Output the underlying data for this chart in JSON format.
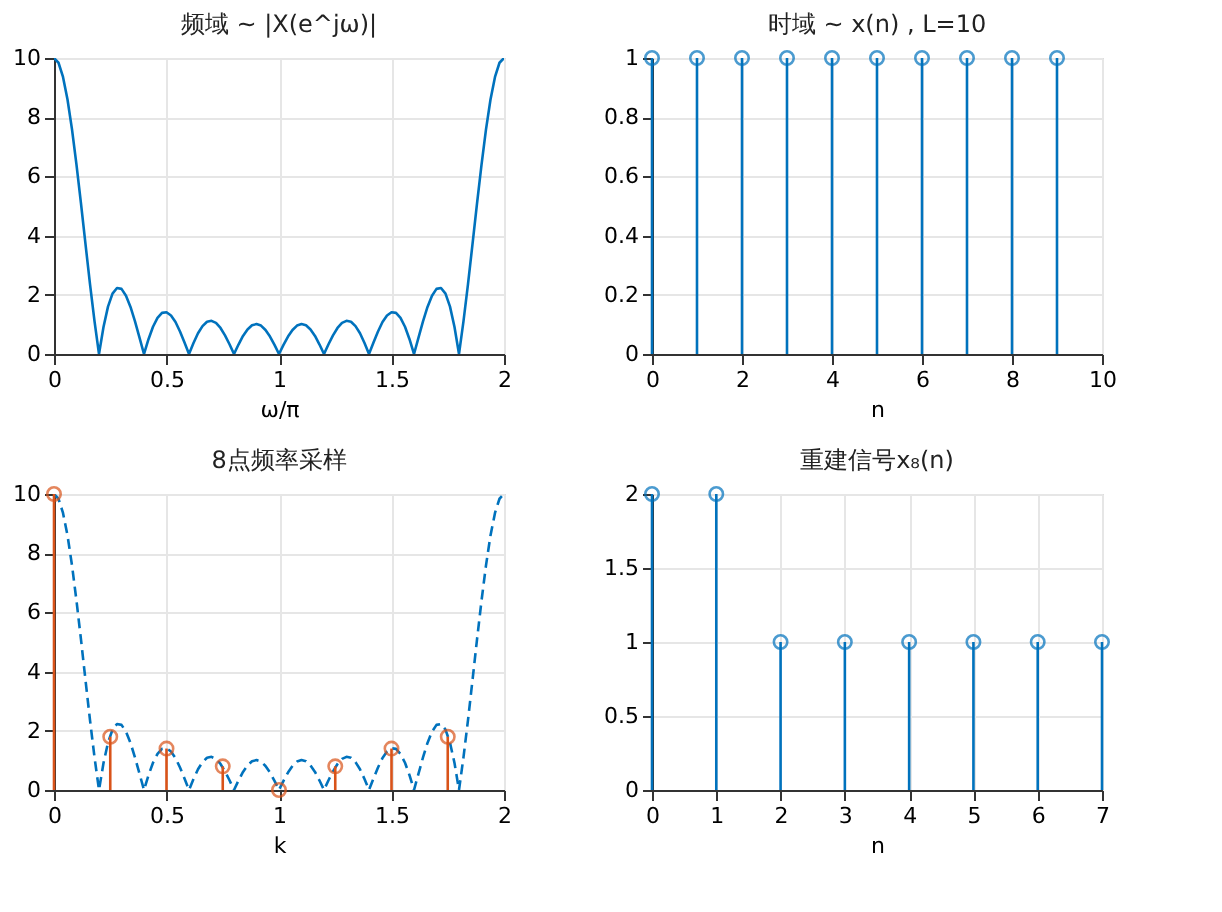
{
  "chart_data": [
    {
      "type": "line",
      "title": "频域 ~ |X(e^jω)|",
      "xlabel": "ω/π",
      "xlim": [
        0,
        2
      ],
      "xticks": [
        0,
        0.5,
        1,
        1.5,
        2
      ],
      "ylim": [
        0,
        10
      ],
      "yticks": [
        0,
        2,
        4,
        6,
        8,
        10
      ],
      "grid": true,
      "x": [
        0,
        0.02,
        0.04,
        0.06,
        0.08,
        0.1,
        0.12,
        0.14,
        0.16,
        0.18,
        0.2,
        0.22,
        0.24,
        0.26,
        0.28,
        0.3,
        0.32,
        0.34,
        0.36,
        0.38,
        0.4,
        0.42,
        0.44,
        0.46,
        0.48,
        0.5,
        0.52,
        0.54,
        0.56,
        0.58,
        0.6,
        0.62,
        0.64,
        0.66,
        0.68,
        0.7,
        0.72,
        0.74,
        0.76,
        0.78,
        0.8,
        0.82,
        0.84,
        0.86,
        0.88,
        0.9,
        0.92,
        0.94,
        0.96,
        0.98,
        1,
        1.02,
        1.04,
        1.06,
        1.08,
        1.1,
        1.12,
        1.14,
        1.16,
        1.18,
        1.2,
        1.22,
        1.24,
        1.26,
        1.28,
        1.3,
        1.32,
        1.34,
        1.36,
        1.38,
        1.4,
        1.42,
        1.44,
        1.46,
        1.48,
        1.5,
        1.52,
        1.54,
        1.56,
        1.58,
        1.6,
        1.62,
        1.64,
        1.66,
        1.68,
        1.7,
        1.72,
        1.74,
        1.76,
        1.78,
        1.8,
        1.82,
        1.84,
        1.86,
        1.88,
        1.9,
        1.92,
        1.94,
        1.96,
        1.98,
        2
      ],
      "series": [
        {
          "color": "#0072bd",
          "values": [
            10,
            9.84,
            9.36,
            8.6,
            7.59,
            6.39,
            5.08,
            3.71,
            2.36,
            1.11,
            0,
            0.91,
            1.6,
            2.04,
            2.23,
            2.2,
            1.97,
            1.59,
            1.1,
            0.55,
            0,
            0.5,
            0.92,
            1.22,
            1.39,
            1.41,
            1.3,
            1.08,
            0.76,
            0.39,
            0,
            0.37,
            0.7,
            0.94,
            1.09,
            1.12,
            1.05,
            0.88,
            0.63,
            0.33,
            0,
            0.32,
            0.61,
            0.83,
            0.97,
            1.01,
            0.96,
            0.81,
            0.59,
            0.31,
            0,
            0.31,
            0.59,
            0.81,
            0.96,
            1.01,
            0.97,
            0.83,
            0.61,
            0.32,
            0,
            0.33,
            0.63,
            0.88,
            1.05,
            1.12,
            1.09,
            0.94,
            0.7,
            0.37,
            0,
            0.39,
            0.76,
            1.08,
            1.3,
            1.41,
            1.39,
            1.22,
            0.92,
            0.5,
            0,
            0.55,
            1.1,
            1.59,
            1.97,
            2.2,
            2.23,
            2.04,
            1.6,
            0.91,
            0,
            1.11,
            2.36,
            3.71,
            5.08,
            6.39,
            7.59,
            8.6,
            9.36,
            9.84,
            10
          ]
        }
      ]
    },
    {
      "type": "lollipop",
      "title": "时域 ~ x(n) , L=10",
      "xlabel": "n",
      "xlim": [
        0,
        10
      ],
      "xticks": [
        0,
        2,
        4,
        6,
        8,
        10
      ],
      "ylim": [
        0,
        1
      ],
      "yticks": [
        0,
        0.2,
        0.4,
        0.6,
        0.8,
        1
      ],
      "grid": true,
      "marker": "circle",
      "x": [
        0,
        1,
        2,
        3,
        4,
        5,
        6,
        7,
        8,
        9
      ],
      "series": [
        {
          "color": "#0072bd",
          "values": [
            1,
            1,
            1,
            1,
            1,
            1,
            1,
            1,
            1,
            1
          ]
        }
      ]
    },
    {
      "type": "line",
      "title": "8点频率采样",
      "xlabel": "k",
      "xlim": [
        0,
        2
      ],
      "xticks": [
        0,
        0.5,
        1,
        1.5,
        2
      ],
      "ylim": [
        0,
        10
      ],
      "yticks": [
        0,
        2,
        4,
        6,
        8,
        10
      ],
      "grid": true,
      "x": [
        0,
        0.02,
        0.04,
        0.06,
        0.08,
        0.1,
        0.12,
        0.14,
        0.16,
        0.18,
        0.2,
        0.22,
        0.24,
        0.26,
        0.28,
        0.3,
        0.32,
        0.34,
        0.36,
        0.38,
        0.4,
        0.42,
        0.44,
        0.46,
        0.48,
        0.5,
        0.52,
        0.54,
        0.56,
        0.58,
        0.6,
        0.62,
        0.64,
        0.66,
        0.68,
        0.7,
        0.72,
        0.74,
        0.76,
        0.78,
        0.8,
        0.82,
        0.84,
        0.86,
        0.88,
        0.9,
        0.92,
        0.94,
        0.96,
        0.98,
        1,
        1.02,
        1.04,
        1.06,
        1.08,
        1.1,
        1.12,
        1.14,
        1.16,
        1.18,
        1.2,
        1.22,
        1.24,
        1.26,
        1.28,
        1.3,
        1.32,
        1.34,
        1.36,
        1.38,
        1.4,
        1.42,
        1.44,
        1.46,
        1.48,
        1.5,
        1.52,
        1.54,
        1.56,
        1.58,
        1.6,
        1.62,
        1.64,
        1.66,
        1.68,
        1.7,
        1.72,
        1.74,
        1.76,
        1.78,
        1.8,
        1.82,
        1.84,
        1.86,
        1.88,
        1.9,
        1.92,
        1.94,
        1.96,
        1.98,
        2
      ],
      "series": [
        {
          "color": "#0072bd",
          "line_style": "dashed",
          "values": [
            10,
            9.84,
            9.36,
            8.6,
            7.59,
            6.39,
            5.08,
            3.71,
            2.36,
            1.11,
            0,
            0.91,
            1.6,
            2.04,
            2.23,
            2.2,
            1.97,
            1.59,
            1.1,
            0.55,
            0,
            0.5,
            0.92,
            1.22,
            1.39,
            1.41,
            1.3,
            1.08,
            0.76,
            0.39,
            0,
            0.37,
            0.7,
            0.94,
            1.09,
            1.12,
            1.05,
            0.88,
            0.63,
            0.33,
            0,
            0.32,
            0.61,
            0.83,
            0.97,
            1.01,
            0.96,
            0.81,
            0.59,
            0.31,
            0,
            0.31,
            0.59,
            0.81,
            0.96,
            1.01,
            0.97,
            0.83,
            0.61,
            0.32,
            0,
            0.33,
            0.63,
            0.88,
            1.05,
            1.12,
            1.09,
            0.94,
            0.7,
            0.37,
            0,
            0.39,
            0.76,
            1.08,
            1.3,
            1.41,
            1.39,
            1.22,
            0.92,
            0.5,
            0,
            0.55,
            1.1,
            1.59,
            1.97,
            2.2,
            2.23,
            2.04,
            1.6,
            0.91,
            0,
            1.11,
            2.36,
            3.71,
            5.08,
            6.39,
            7.59,
            8.6,
            9.36,
            9.84,
            10
          ]
        },
        {
          "type": "lollipop",
          "color": "#d95319",
          "marker": "circle",
          "x": [
            0,
            0.25,
            0.5,
            0.75,
            1,
            1.25,
            1.5,
            1.75
          ],
          "values": [
            10,
            1.8,
            1.4,
            0.8,
            0,
            0.8,
            1.4,
            1.8
          ]
        }
      ]
    },
    {
      "type": "lollipop",
      "title": "重建信号x₈(n)",
      "xlabel": "n",
      "xlim": [
        0,
        7
      ],
      "xticks": [
        0,
        1,
        2,
        3,
        4,
        5,
        6,
        7
      ],
      "ylim": [
        0,
        2
      ],
      "yticks": [
        0,
        0.5,
        1,
        1.5,
        2
      ],
      "grid": true,
      "marker": "circle",
      "x": [
        0,
        1,
        2,
        3,
        4,
        5,
        6,
        7
      ],
      "series": [
        {
          "color": "#0072bd",
          "values": [
            2,
            2,
            1,
            1,
            1,
            1,
            1,
            1
          ]
        }
      ]
    }
  ]
}
